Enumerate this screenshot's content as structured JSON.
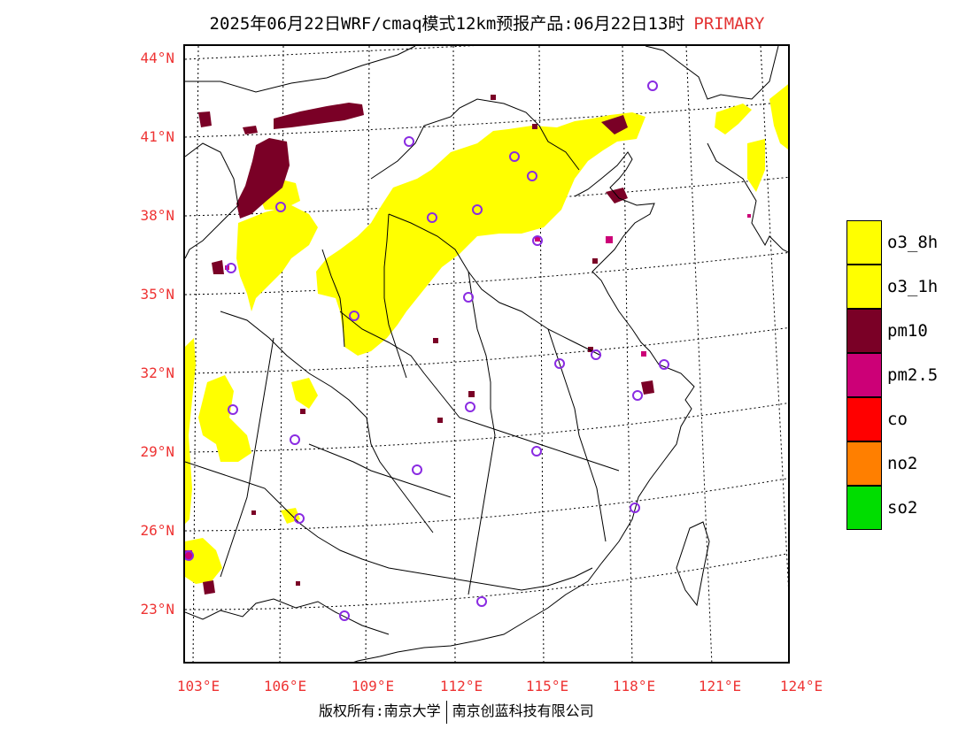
{
  "title": {
    "text": "2025年06月22日WRF/cmaq模式12km预报产品:06月22日13时",
    "tag": "PRIMARY",
    "tag_color": "#e33333"
  },
  "axes": {
    "lat_labels": [
      "44°N",
      "41°N",
      "38°N",
      "35°N",
      "32°N",
      "29°N",
      "26°N",
      "23°N"
    ],
    "lon_labels": [
      "103°E",
      "106°E",
      "109°E",
      "112°E",
      "115°E",
      "118°E",
      "121°E",
      "124°E"
    ],
    "label_color": "#e33333"
  },
  "legend": {
    "items": [
      {
        "label": "o3_8h",
        "color": "#ffff00"
      },
      {
        "label": "o3_1h",
        "color": "#ffff00"
      },
      {
        "label": "pm10",
        "color": "#7a0026"
      },
      {
        "label": "pm2.5",
        "color": "#cc0077"
      },
      {
        "label": "co",
        "color": "#ff0000"
      },
      {
        "label": "no2",
        "color": "#ff7f00"
      },
      {
        "label": "so2",
        "color": "#00dd00"
      }
    ]
  },
  "footer": {
    "left": "版权所有:南京大学",
    "right": "南京创蓝科技有限公司"
  },
  "map": {
    "colors": {
      "o3": "#ffff00",
      "pm10": "#7a0026",
      "pm25": "#cc0077",
      "station": "#8a2be2",
      "boundary": "#000000"
    },
    "station_markers": "violet-circle-icon"
  }
}
